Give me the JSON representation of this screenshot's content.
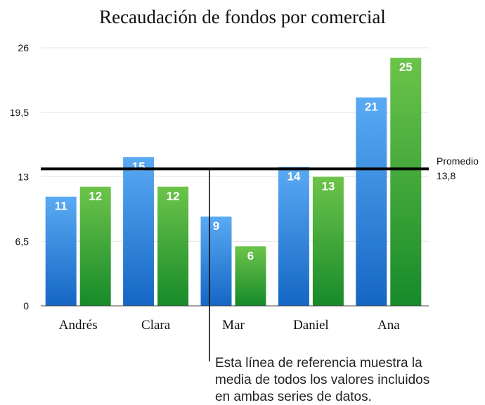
{
  "chart_data": {
    "type": "bar",
    "title": "Recaudación de fondos por comercial",
    "categories": [
      "Andrés",
      "Clara",
      "Mar",
      "Daniel",
      "Ana"
    ],
    "series": [
      {
        "values": [
          11,
          15,
          9,
          14,
          21
        ],
        "color": "#2f86e0"
      },
      {
        "values": [
          12,
          12,
          6,
          13,
          25
        ],
        "color": "#3aa443"
      }
    ],
    "ylim": [
      0,
      26
    ],
    "yticks": [
      "0",
      "6,5",
      "13",
      "19,5",
      "26"
    ],
    "ytick_values": [
      0,
      6.5,
      13,
      19.5,
      26
    ],
    "grid": true,
    "reference_line": {
      "label": "Promedio",
      "value_label": "13,8",
      "value": 13.8
    },
    "annotation": [
      "Esta línea de referencia muestra la",
      "media de todos los valores incluidos",
      "en ambas series de datos."
    ]
  }
}
